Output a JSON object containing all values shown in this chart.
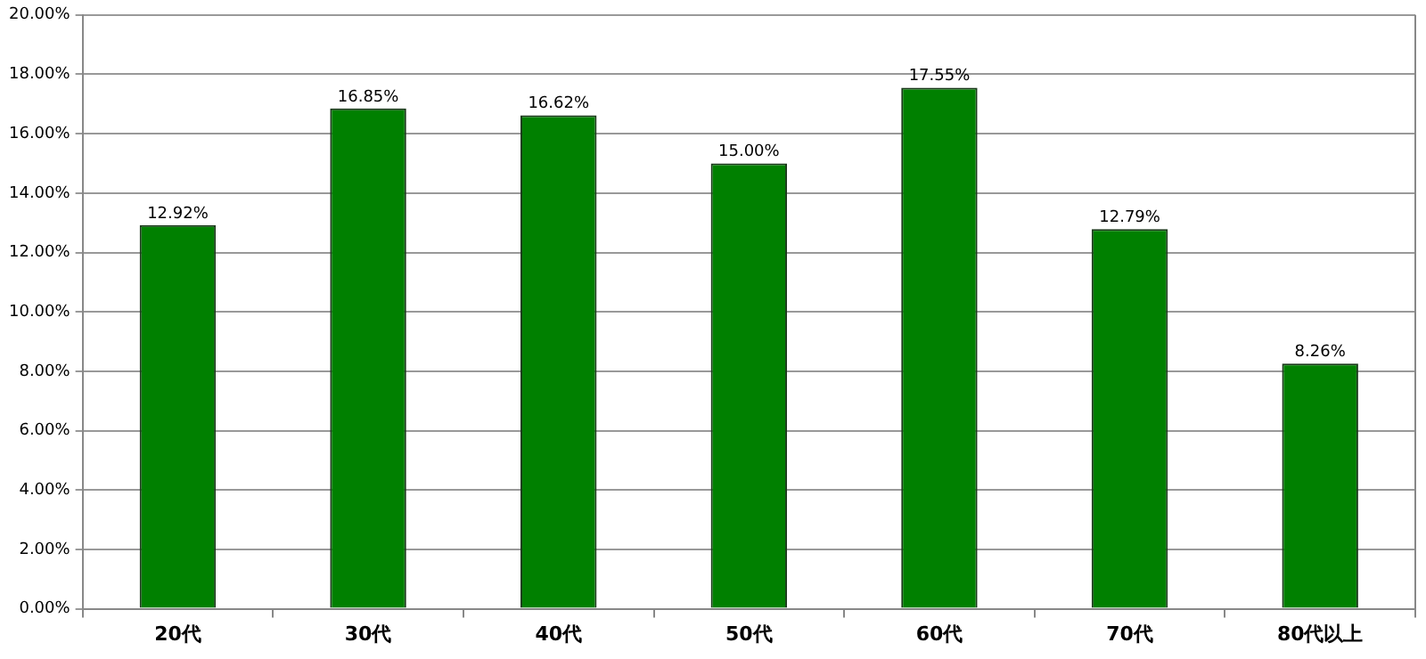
{
  "chart_data": {
    "type": "bar",
    "categories": [
      "20代",
      "30代",
      "40代",
      "50代",
      "60代",
      "70代",
      "80代以上"
    ],
    "values": [
      12.92,
      16.85,
      16.62,
      15.0,
      17.55,
      12.79,
      8.26
    ],
    "value_labels": [
      "12.92%",
      "16.85%",
      "16.62%",
      "15.00%",
      "17.55%",
      "12.79%",
      "8.26%"
    ],
    "color": "#008000",
    "ylim": [
      0,
      20
    ],
    "yticks": [
      {
        "value": 0,
        "label": "0.00%"
      },
      {
        "value": 2,
        "label": "2.00%"
      },
      {
        "value": 4,
        "label": "4.00%"
      },
      {
        "value": 6,
        "label": "6.00%"
      },
      {
        "value": 8,
        "label": "8.00%"
      },
      {
        "value": 10,
        "label": "10.00%"
      },
      {
        "value": 12,
        "label": "12.00%"
      },
      {
        "value": 14,
        "label": "14.00%"
      },
      {
        "value": 16,
        "label": "16.00%"
      },
      {
        "value": 18,
        "label": "18.00%"
      },
      {
        "value": 20,
        "label": "20.00%"
      }
    ],
    "grid": "y",
    "legend": false
  }
}
